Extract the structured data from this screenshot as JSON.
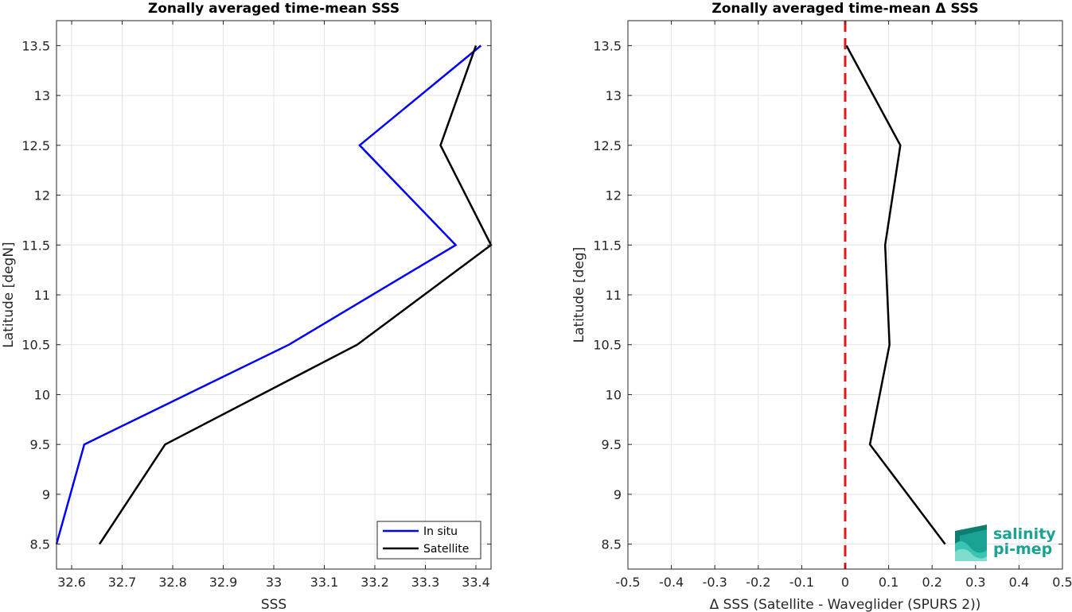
{
  "chart_data": [
    {
      "type": "line",
      "title": "Zonally averaged time-mean SSS",
      "xlabel": "SSS",
      "ylabel": "Latitude [degN]",
      "xlim": [
        32.57,
        33.43
      ],
      "ylim": [
        8.25,
        13.75
      ],
      "xticks": [
        "32.6",
        "32.7",
        "32.8",
        "32.9",
        "33",
        "33.1",
        "33.2",
        "33.3",
        "33.4"
      ],
      "yticks": [
        "8.5",
        "9",
        "9.5",
        "10",
        "10.5",
        "11",
        "11.5",
        "12",
        "12.5",
        "13",
        "13.5"
      ],
      "grid": true,
      "legend_position": "bottom-right",
      "series": [
        {
          "name": "In situ",
          "color": "#0000ff",
          "x": [
            32.57,
            32.625,
            33.03,
            33.36,
            33.17,
            33.41
          ],
          "y": [
            8.5,
            9.5,
            10.5,
            11.5,
            12.5,
            13.5
          ]
        },
        {
          "name": "Satellite",
          "color": "#000000",
          "x": [
            32.655,
            32.785,
            33.165,
            33.43,
            33.33,
            33.4
          ],
          "y": [
            8.5,
            9.5,
            10.5,
            11.5,
            12.5,
            13.5
          ]
        }
      ]
    },
    {
      "type": "line",
      "title": "Zonally averaged time-mean Δ SSS",
      "xlabel": "Δ SSS (Satellite - Waveglider (SPURS 2))",
      "ylabel": "Latitude [deg]",
      "xlim": [
        -0.5,
        0.5
      ],
      "ylim": [
        8.25,
        13.75
      ],
      "xticks": [
        "-0.5",
        "-0.4",
        "-0.3",
        "-0.2",
        "-0.1",
        "0",
        "0.1",
        "0.2",
        "0.3",
        "0.4",
        "0.5"
      ],
      "yticks": [
        "8.5",
        "9",
        "9.5",
        "10",
        "10.5",
        "11",
        "11.5",
        "12",
        "12.5",
        "13",
        "13.5"
      ],
      "grid": true,
      "reference_line": {
        "x": 0,
        "color": "#e31a1c",
        "style": "dashed"
      },
      "series": [
        {
          "color": "#000000",
          "x": [
            0.23,
            0.057,
            0.102,
            0.092,
            0.127,
            0.003
          ],
          "y": [
            8.5,
            9.5,
            10.5,
            11.5,
            12.5,
            13.5
          ]
        }
      ]
    }
  ],
  "logo": {
    "line1": "salinity",
    "line2": "pi-mep",
    "color": "#1aa393"
  }
}
